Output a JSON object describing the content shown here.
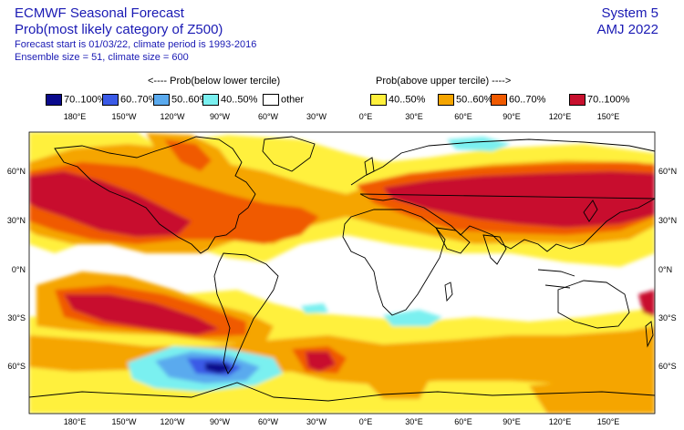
{
  "header": {
    "title": "ECMWF Seasonal Forecast",
    "subtitle": "Prob(most likely category of Z500)",
    "line3": "Forecast start is 01/03/22, climate period is 1993-2016",
    "line4": "Ensemble size = 51, climate size = 600",
    "system": "System 5",
    "season": "AMJ 2022"
  },
  "legend": {
    "below_heading": "<---- Prob(below lower tercile)",
    "above_heading": "Prob(above upper tercile) ---->",
    "items": [
      {
        "label": "70..100%",
        "color": "#0a0a8c"
      },
      {
        "label": "60..70%",
        "color": "#3a5ae6"
      },
      {
        "label": "50..60%",
        "color": "#5aaaee"
      },
      {
        "label": "40..50%",
        "color": "#7af0f0"
      },
      {
        "label": "other",
        "color": "#ffffff"
      },
      {
        "label": "40..50%",
        "color": "#fff03c"
      },
      {
        "label": "50..60%",
        "color": "#f5a500"
      },
      {
        "label": "60..70%",
        "color": "#f05a00"
      },
      {
        "label": "70..100%",
        "color": "#c8102e"
      }
    ]
  },
  "map": {
    "lon_ticks": [
      "180°E",
      "150°W",
      "120°W",
      "90°W",
      "60°W",
      "30°W",
      "0°E",
      "30°E",
      "60°E",
      "90°E",
      "120°E",
      "150°E"
    ],
    "lat_ticks": [
      "60°N",
      "30°N",
      "0°N",
      "30°S",
      "60°S"
    ]
  }
}
